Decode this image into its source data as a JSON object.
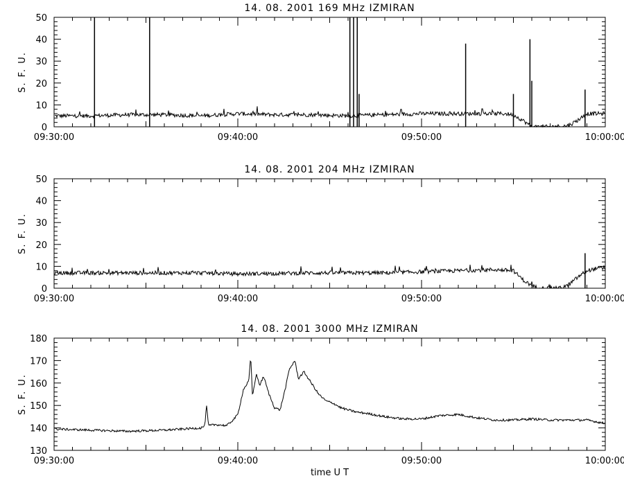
{
  "chart_data": [
    {
      "type": "line",
      "title": "14.  08.  2001    169  MHz    IZMIRAN",
      "ylabel": "S.  F.  U.",
      "xlabel": "",
      "ylim": [
        0,
        50
      ],
      "yticks": [
        0,
        10,
        20,
        30,
        40,
        50
      ],
      "xlim": [
        "09:30:00",
        "10:00:00"
      ],
      "xticks": [
        "09:30:00",
        "09:40:00",
        "09:50:00",
        "10:00:00"
      ],
      "series": [
        {
          "x": [
            "09:30:00",
            "09:32:00",
            "09:34:00",
            "09:36:00",
            "09:38:00",
            "09:40:00",
            "09:42:00",
            "09:44:00",
            "09:46:00",
            "09:48:00",
            "09:50:00",
            "09:52:00",
            "09:54:00",
            "09:54:30",
            "09:55:00",
            "09:55:30",
            "09:56:00",
            "09:57:00",
            "09:58:00",
            "09:58:30",
            "09:59:00",
            "10:00:00"
          ],
          "values": [
            5,
            5,
            5.5,
            5.5,
            5,
            6,
            5.5,
            5.5,
            5,
            5.5,
            6,
            6,
            6,
            6,
            5.5,
            3,
            0,
            0,
            0.5,
            3,
            6,
            6
          ]
        }
      ],
      "spikes": [
        {
          "x": "09:32:12",
          "value": 50
        },
        {
          "x": "09:35:12",
          "value": 50
        },
        {
          "x": "09:46:06",
          "value": 50
        },
        {
          "x": "09:46:18",
          "value": 50
        },
        {
          "x": "09:46:30",
          "value": 50
        },
        {
          "x": "09:46:36",
          "value": 15
        },
        {
          "x": "09:52:24",
          "value": 38
        },
        {
          "x": "09:55:00",
          "value": 15
        },
        {
          "x": "09:55:54",
          "value": 40
        },
        {
          "x": "09:56:00",
          "value": 21
        },
        {
          "x": "09:58:54",
          "value": 17
        }
      ]
    },
    {
      "type": "line",
      "title": "14.  08.  2001    204  MHz    IZMIRAN",
      "ylabel": "S.  F.  U.",
      "xlabel": "",
      "ylim": [
        0,
        50
      ],
      "yticks": [
        0,
        10,
        20,
        30,
        40,
        50
      ],
      "xlim": [
        "09:30:00",
        "10:00:00"
      ],
      "xticks": [
        "09:30:00",
        "09:40:00",
        "09:50:00",
        "10:00:00"
      ],
      "series": [
        {
          "x": [
            "09:30:00",
            "09:34:00",
            "09:38:00",
            "09:40:00",
            "09:44:00",
            "09:48:00",
            "09:50:00",
            "09:52:00",
            "09:54:00",
            "09:55:00",
            "09:55:30",
            "09:56:00",
            "09:56:30",
            "09:57:00",
            "09:57:30",
            "09:58:00",
            "09:58:30",
            "09:59:00",
            "09:59:30",
            "10:00:00"
          ],
          "values": [
            7,
            7,
            7,
            6.5,
            7,
            7,
            7.5,
            8,
            8.5,
            8,
            4,
            1,
            0,
            0,
            0,
            1.5,
            5,
            8,
            9,
            9
          ]
        }
      ],
      "spikes": [
        {
          "x": "09:58:54",
          "value": 16
        }
      ]
    },
    {
      "type": "line",
      "title": "14.  08.  2001    3000  MHz    IZMIRAN",
      "ylabel": "S.  F.  U.",
      "xlabel": "time    U  T",
      "ylim": [
        130,
        180
      ],
      "yticks": [
        130,
        140,
        150,
        160,
        170,
        180
      ],
      "xlim": [
        "09:30:00",
        "10:00:00"
      ],
      "xticks": [
        "09:30:00",
        "09:40:00",
        "09:50:00",
        "10:00:00"
      ],
      "series": [
        {
          "x": [
            "09:30:00",
            "09:32:00",
            "09:34:00",
            "09:36:00",
            "09:37:00",
            "09:38:00",
            "09:38:12",
            "09:38:18",
            "09:38:24",
            "09:38:48",
            "09:39:24",
            "09:39:48",
            "09:40:00",
            "09:40:18",
            "09:40:36",
            "09:40:42",
            "09:40:48",
            "09:41:00",
            "09:41:12",
            "09:41:24",
            "09:41:42",
            "09:42:00",
            "09:42:18",
            "09:42:36",
            "09:42:48",
            "09:43:06",
            "09:43:18",
            "09:43:36",
            "09:44:00",
            "09:44:24",
            "09:44:48",
            "09:45:12",
            "09:45:36",
            "09:46:00",
            "09:46:30",
            "09:47:00",
            "09:48:00",
            "09:49:00",
            "09:50:00",
            "09:51:00",
            "09:52:00",
            "09:53:00",
            "09:54:00",
            "09:55:00",
            "09:56:00",
            "09:57:00",
            "09:58:00",
            "09:59:00",
            "10:00:00"
          ],
          "values": [
            139.5,
            139,
            138.5,
            139,
            139.5,
            140,
            141,
            150,
            141,
            141.5,
            141,
            144,
            146,
            157,
            161,
            172,
            154,
            164,
            159,
            163,
            155,
            149,
            148,
            158,
            166,
            170,
            162,
            165,
            160,
            155,
            152,
            151,
            149,
            148,
            147,
            146.5,
            145,
            144,
            144,
            145.5,
            146,
            144.5,
            143.5,
            143.5,
            144,
            143.5,
            143.5,
            143.5,
            142
          ]
        }
      ]
    }
  ]
}
